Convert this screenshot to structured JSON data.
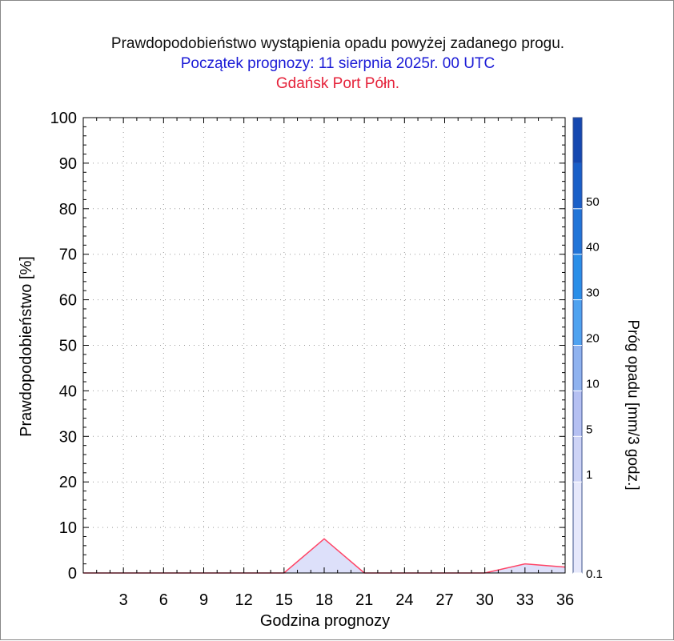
{
  "colors": {
    "title": "#111111",
    "subtitle": "#1a1ad6",
    "station": "#e5223a",
    "axis": "#000000",
    "series_line": "#ff4466",
    "series_fill": "#dde0fa"
  },
  "chart_data": {
    "type": "area",
    "title": "Prawdopodobieństwo wystąpienia opadu powyżej zadanego progu.",
    "subtitle": "Początek prognozy: 11 sierpnia 2025r. 00 UTC",
    "station": "Gdańsk Port Półn.",
    "xlabel": "Godzina prognozy",
    "ylabel": "Prawdopodobieństwo [%]",
    "xlim": [
      0,
      36
    ],
    "ylim": [
      0,
      100
    ],
    "x_ticks": [
      "3",
      "6",
      "9",
      "12",
      "15",
      "18",
      "21",
      "24",
      "27",
      "30",
      "33",
      "36"
    ],
    "y_ticks": [
      "0",
      "10",
      "20",
      "30",
      "40",
      "50",
      "60",
      "70",
      "80",
      "90",
      "100"
    ],
    "grid": true,
    "series": [
      {
        "threshold": "0.1",
        "x": [
          0,
          3,
          6,
          9,
          12,
          15,
          18,
          21,
          24,
          27,
          30,
          33,
          36
        ],
        "values": [
          0,
          0,
          0,
          0,
          0,
          0,
          7.5,
          0,
          0,
          0,
          0,
          2,
          1.3
        ]
      }
    ],
    "colorbar": {
      "label": "Próg opadu [mm/3 godz.]",
      "tick_labels": [
        "0.1",
        "1",
        "5",
        "10",
        "20",
        "30",
        "40",
        "50"
      ],
      "band_colors": [
        "#e6e8fb",
        "#cdd3f6",
        "#b5c0f2",
        "#8fb2ef",
        "#4fa2f0",
        "#2a8ee8",
        "#2174d8",
        "#1a5fc8",
        "#1548b0"
      ]
    }
  }
}
